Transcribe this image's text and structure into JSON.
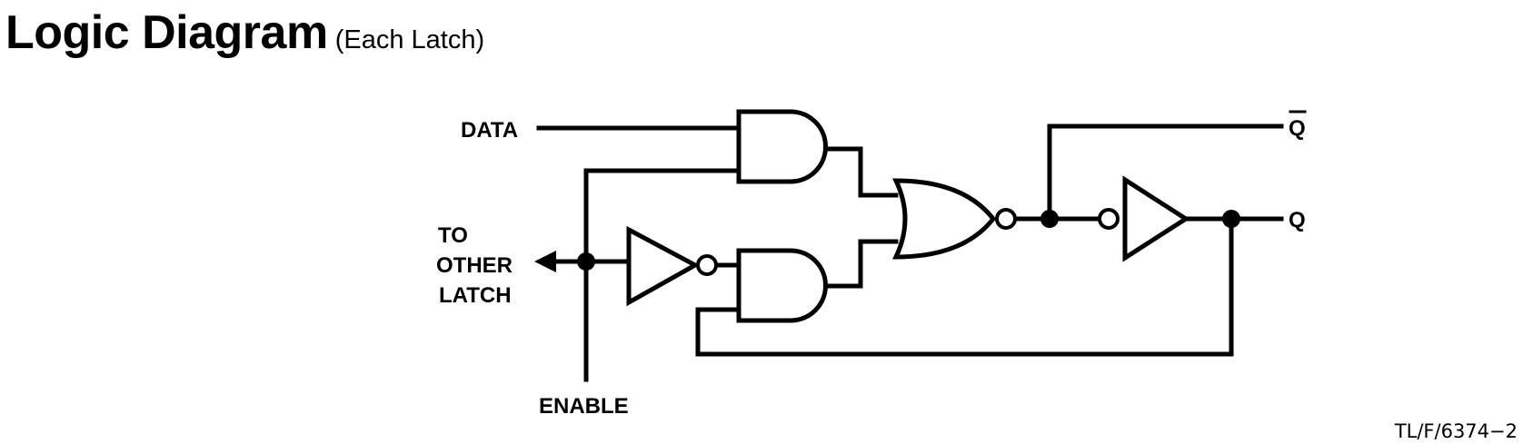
{
  "title": "Logic Diagram",
  "subtitle": "(Each Latch)",
  "labels": {
    "data": "DATA",
    "to_other_latch": [
      "TO",
      "OTHER",
      "LATCH"
    ],
    "enable": "ENABLE",
    "q_bar": "Q",
    "q": "Q"
  },
  "figure_ref": "TL/F/6374−2"
}
